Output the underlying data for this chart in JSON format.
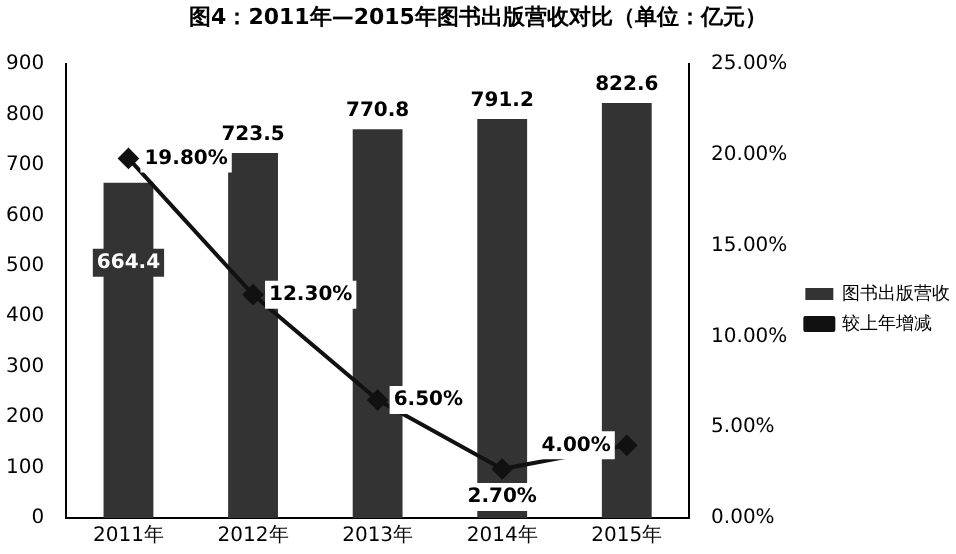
{
  "chart_data": {
    "type": "bar",
    "title": "图4：2011年—2015年图书出版营收对比（单位：亿元）",
    "categories": [
      "2011年",
      "2012年",
      "2013年",
      "2014年",
      "2015年"
    ],
    "series": [
      {
        "name": "图书出版营收",
        "color": "#333333",
        "values": [
          664.4,
          723.5,
          770.8,
          791.2,
          822.6
        ]
      },
      {
        "name": "较上年增减",
        "type": "line",
        "axis": "y2",
        "color": "#111111",
        "marker": "diamond",
        "values": [
          19.8,
          12.3,
          6.5,
          2.7,
          4.0
        ],
        "value_labels": [
          "19.80%",
          "12.30%",
          "6.50%",
          "2.70%",
          "4.00%"
        ]
      }
    ],
    "ylim": [
      0,
      900
    ],
    "yticks": [
      0,
      100,
      200,
      300,
      400,
      500,
      600,
      700,
      800,
      900
    ],
    "y2lim": [
      0,
      25
    ],
    "y2ticks": [
      {
        "value": 0,
        "label": "0.00%"
      },
      {
        "value": 5,
        "label": "5.00%"
      },
      {
        "value": 10,
        "label": "10.00%"
      },
      {
        "value": 15,
        "label": "15.00%"
      },
      {
        "value": 20,
        "label": "20.00%"
      },
      {
        "value": 25,
        "label": "25.00%"
      }
    ],
    "data_labels": true,
    "grid": false,
    "legend": "right"
  }
}
